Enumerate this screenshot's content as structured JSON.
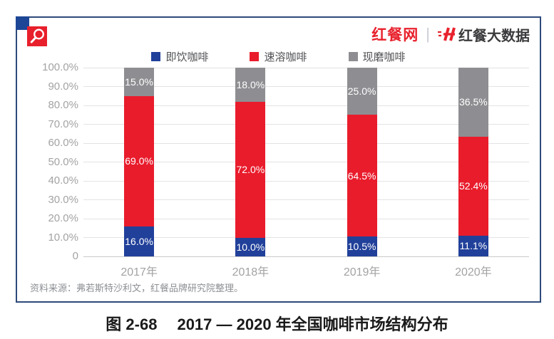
{
  "header": {
    "brand_left": "红餐网",
    "brand_divider": "|",
    "brand_right": "红餐大数据",
    "brand_red": "#E8222D",
    "brand_dark": "#3B3B3D"
  },
  "legend": [
    {
      "label": "即饮咖啡",
      "color": "#21409A"
    },
    {
      "label": "速溶咖啡",
      "color": "#E91C2C"
    },
    {
      "label": "现磨咖啡",
      "color": "#8E8E92"
    }
  ],
  "chart_data": {
    "type": "bar",
    "stacked": true,
    "title": "2017 — 2020 年全国咖啡市场结构分布",
    "categories": [
      "2017年",
      "2018年",
      "2019年",
      "2020年"
    ],
    "series": [
      {
        "name": "即饮咖啡",
        "color": "#21409A",
        "values": [
          16.0,
          10.0,
          10.5,
          11.1
        ]
      },
      {
        "name": "速溶咖啡",
        "color": "#E91C2C",
        "values": [
          69.0,
          72.0,
          64.5,
          52.4
        ]
      },
      {
        "name": "现磨咖啡",
        "color": "#8E8E92",
        "values": [
          15.0,
          18.0,
          25.0,
          36.5
        ]
      }
    ],
    "y_ticks": [
      "100.0%",
      "90.0%",
      "80.0%",
      "70.0%",
      "60.0%",
      "50.0%",
      "40.0%",
      "30.0%",
      "20.0%",
      "10.0%",
      "0"
    ],
    "ylim": [
      0,
      100
    ],
    "grid": true,
    "legend_position": "top",
    "value_label_suffix": "%"
  },
  "source_note": "资料来源：弗若斯特沙利文，红餐品牌研究院整理。",
  "caption": {
    "figure_no": "图 2-68",
    "title": "2017 — 2020 年全国咖啡市场结构分布"
  },
  "colors": {
    "card_border": "#2E4A7B",
    "corner_square": "#1D4696",
    "magnifier_bg": "#E8202C",
    "gridline": "#E3E3E3",
    "tick_text": "#A3A3A5"
  }
}
